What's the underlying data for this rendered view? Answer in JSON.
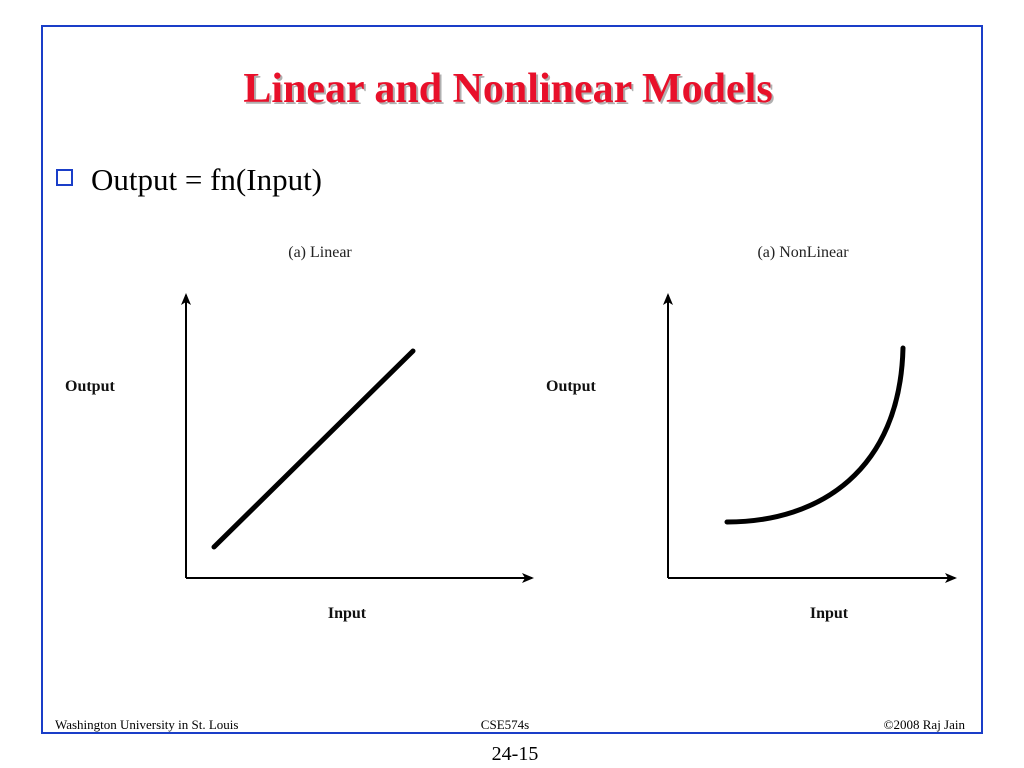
{
  "header": {
    "title": "Linear and Nonlinear Models"
  },
  "bullets": [
    "Output = fn(Input)"
  ],
  "diagrams": [
    {
      "caption": "(a) Linear",
      "y_label": "Output",
      "x_label": "Input"
    },
    {
      "caption": "(a) NonLinear",
      "y_label": "Output",
      "x_label": "Input"
    }
  ],
  "footer": {
    "left": "Washington University in St. Louis",
    "center": "CSE574s",
    "right": "©2008 Raj Jain",
    "page": "24-15"
  }
}
